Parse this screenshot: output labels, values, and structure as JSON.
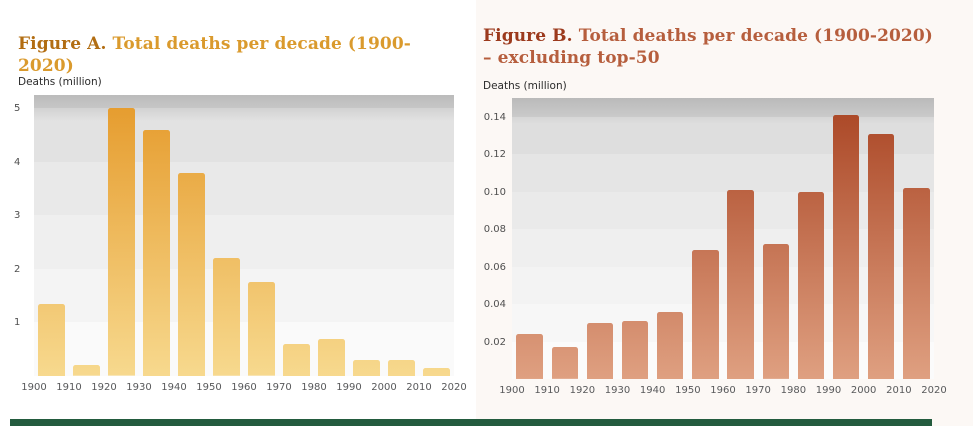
{
  "accent_bar_color": "#235b3e",
  "figure_a": {
    "title_prefix": "Figure A.",
    "title_rest": "Total deaths per decade (1900-2020)",
    "axis_label": "Deaths (million)",
    "title_prefix_color": "#b26d12",
    "title_rest_color": "#da9a2d"
  },
  "figure_b": {
    "title_prefix": "Figure B.",
    "title_rest": "Total deaths per decade (1900-2020)",
    "title_line2": "– excluding top-50",
    "axis_label": "Deaths (million)",
    "title_prefix_color": "#9c3a1d",
    "title_rest_color": "#b65e3d"
  },
  "chart_data": [
    {
      "id": "figure-a",
      "type": "bar",
      "title": "Figure A. Total deaths per decade (1900-2020)",
      "ylabel": "Deaths (million)",
      "categories": [
        "1900s",
        "1910s",
        "1920s",
        "1930s",
        "1940s",
        "1950s",
        "1960s",
        "1970s",
        "1980s",
        "1990s",
        "2000s",
        "2010s"
      ],
      "values": [
        1.35,
        0.2,
        5.0,
        4.6,
        3.8,
        2.2,
        1.75,
        0.6,
        0.7,
        0.3,
        0.3,
        0.15
      ],
      "x_tick_labels": [
        "1900",
        "1910",
        "1920",
        "1930",
        "1940",
        "1950",
        "1960",
        "1970",
        "1980",
        "1990",
        "2000",
        "2010",
        "2020"
      ],
      "y_ticks": [
        "1",
        "2",
        "3",
        "4",
        "5"
      ],
      "ylim": [
        0,
        5.25
      ],
      "grid": "horizontal-bands",
      "legend": "none",
      "bar_color_top": "#e59a2b",
      "bar_color_bottom": "#f7d98e"
    },
    {
      "id": "figure-b",
      "type": "bar",
      "title": "Figure B. Total deaths per decade (1900-2020) – excluding top-50",
      "ylabel": "Deaths (million)",
      "categories": [
        "1900s",
        "1910s",
        "1920s",
        "1930s",
        "1940s",
        "1950s",
        "1960s",
        "1970s",
        "1980s",
        "1990s",
        "2000s",
        "2010s"
      ],
      "values": [
        0.024,
        0.017,
        0.03,
        0.031,
        0.036,
        0.069,
        0.101,
        0.072,
        0.1,
        0.141,
        0.131,
        0.102
      ],
      "x_tick_labels": [
        "1900",
        "1910",
        "1920",
        "1930",
        "1940",
        "1950",
        "1960",
        "1970",
        "1980",
        "1990",
        "2000",
        "2010",
        "2020"
      ],
      "y_ticks": [
        "0.02",
        "0.04",
        "0.06",
        "0.08",
        "0.10",
        "0.12",
        "0.14"
      ],
      "ylim": [
        0,
        0.15
      ],
      "grid": "horizontal-bands",
      "legend": "none",
      "bar_color_top": "#a94423",
      "bar_color_bottom": "#dfa081"
    }
  ]
}
